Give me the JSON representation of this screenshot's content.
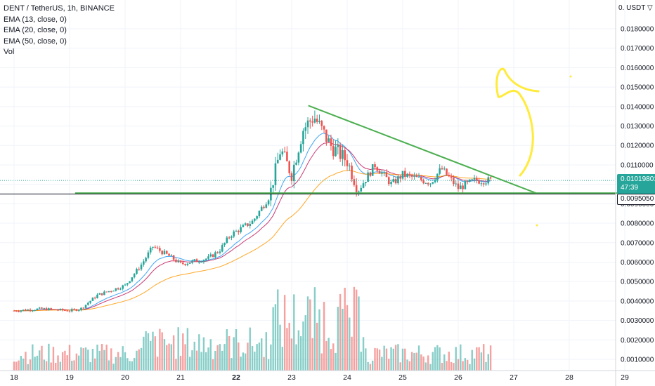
{
  "header": {
    "symbol_line": "DENT / TetherUS, 1h, BINANCE",
    "indicators": [
      "EMA (13, close, 0)",
      "EMA (20, close, 0)",
      "EMA (50, close, 0)",
      "Vol"
    ]
  },
  "price_axis": {
    "currency_label": "0. USDT ▽",
    "current_price": "0.01019801",
    "countdown": "47:39",
    "horizontal_line_value": "0.0095050",
    "tick_labels": [
      "0.0010000",
      "0.0020000",
      "0.0030000",
      "0.0040000",
      "0.0050000",
      "0.0060000",
      "0.0070000",
      "0.0080000",
      "0.0090000",
      "0.0100000",
      "0.0110000",
      "0.0120000",
      "0.0130000",
      "0.0140000",
      "0.0150000",
      "0.0160000",
      "0.0170000",
      "0.0180000"
    ]
  },
  "colors": {
    "up": "#26a69a",
    "down": "#ef5350",
    "ema13": "#2196f3",
    "ema20": "#c2185b",
    "ema50": "#ff9800",
    "trendline": "#4caf50",
    "drawing": "#ffeb3b"
  },
  "chart_data": {
    "type": "candlestick",
    "title": "DENT / TetherUS, 1h, BINANCE",
    "x_tick_labels": [
      "18",
      "19",
      "20",
      "21",
      "22",
      "23",
      "24",
      "25",
      "26",
      "27",
      "28",
      "29"
    ],
    "ylim": [
      0.0005,
      0.0195
    ],
    "grid": true,
    "price_path": [
      [
        "18",
        0.0035
      ],
      [
        "18.5",
        0.0036
      ],
      [
        "19",
        0.0035
      ],
      [
        "19.2",
        0.0036
      ],
      [
        "19.5",
        0.0043
      ],
      [
        "20",
        0.0048
      ],
      [
        "20.3",
        0.0059
      ],
      [
        "20.5",
        0.0068
      ],
      [
        "20.8",
        0.0063
      ],
      [
        "21",
        0.0059
      ],
      [
        "21.5",
        0.0062
      ],
      [
        "21.7",
        0.0066
      ],
      [
        "21.9",
        0.0074
      ],
      [
        "22.3",
        0.0081
      ],
      [
        "22.6",
        0.0094
      ],
      [
        "22.8",
        0.0118
      ],
      [
        "23",
        0.0105
      ],
      [
        "23.2",
        0.0128
      ],
      [
        "23.4",
        0.0135
      ],
      [
        "23.7",
        0.012
      ],
      [
        "24",
        0.0112
      ],
      [
        "24.2",
        0.0097
      ],
      [
        "24.5",
        0.011
      ],
      [
        "24.8",
        0.01
      ],
      [
        "25",
        0.0105
      ],
      [
        "25.5",
        0.0101
      ],
      [
        "25.7",
        0.0108
      ],
      [
        "26",
        0.0098
      ],
      [
        "26.3",
        0.0102
      ],
      [
        "26.6",
        0.0102
      ]
    ],
    "trendlines": [
      {
        "from": [
          "23.3",
          0.01405
        ],
        "to": [
          "27.4",
          0.00955
        ]
      },
      {
        "from": [
          "19.1",
          0.00955
        ],
        "to": [
          "29",
          0.00955
        ]
      }
    ],
    "horizontal_line": 0.009505
  }
}
